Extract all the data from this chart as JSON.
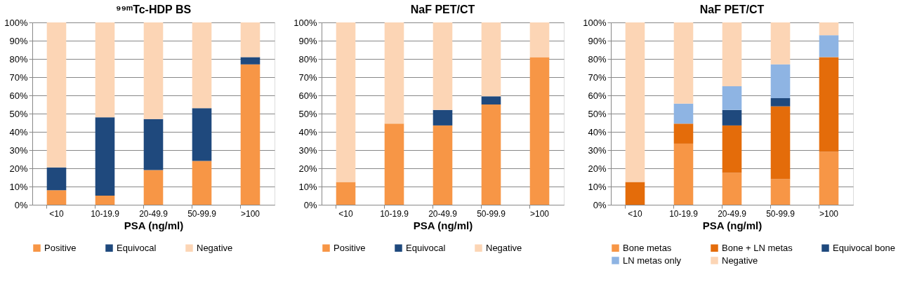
{
  "chart_data": [
    {
      "type": "bar",
      "stacked": true,
      "title": "⁹⁹ᵐTc-HDP BS",
      "xlabel": "PSA (ng/ml)",
      "categories": [
        "<10",
        "10-19.9",
        "20-49.9",
        "50-99.9",
        ">100"
      ],
      "series": [
        {
          "name": "Positive",
          "color": "#f79646",
          "values": [
            8,
            5,
            19,
            24,
            77
          ]
        },
        {
          "name": "Equivocal",
          "color": "#1f497d",
          "values": [
            12.5,
            43,
            28,
            29,
            4
          ]
        },
        {
          "name": "Negative",
          "color": "#fcd5b5",
          "values": [
            79.5,
            52,
            53,
            47,
            19
          ]
        }
      ],
      "ylim": [
        0,
        100
      ],
      "yticks": [
        {
          "value": 0,
          "label": "0%"
        },
        {
          "value": 10,
          "label": "10%"
        },
        {
          "value": 20,
          "label": "20%"
        },
        {
          "value": 30,
          "label": "30%"
        },
        {
          "value": 40,
          "label": "40%"
        },
        {
          "value": 50,
          "label": "50%"
        },
        {
          "value": 60,
          "label": "60%"
        },
        {
          "value": 70,
          "label": "70%"
        },
        {
          "value": 80,
          "label": "80%"
        },
        {
          "value": 90,
          "label": "90%"
        },
        {
          "value": 100,
          "label": "100%"
        }
      ],
      "grid": "y",
      "legend": "bottom"
    },
    {
      "type": "bar",
      "stacked": true,
      "title": "NaF PET/CT",
      "xlabel": "PSA (ng/ml)",
      "categories": [
        "<10",
        "10-19.9",
        "20-49.9",
        "50-99.9",
        ">100"
      ],
      "series": [
        {
          "name": "Positive",
          "color": "#f79646",
          "values": [
            12.5,
            44.5,
            43.5,
            55,
            81
          ]
        },
        {
          "name": "Equivocal",
          "color": "#1f497d",
          "values": [
            0,
            0,
            8.5,
            4.5,
            0
          ]
        },
        {
          "name": "Negative",
          "color": "#fcd5b5",
          "values": [
            87.5,
            55.5,
            48,
            40.5,
            19
          ]
        }
      ],
      "ylim": [
        0,
        100
      ],
      "yticks": [
        {
          "value": 0,
          "label": "0%"
        },
        {
          "value": 10,
          "label": "10%"
        },
        {
          "value": 20,
          "label": "20%"
        },
        {
          "value": 30,
          "label": "30%"
        },
        {
          "value": 40,
          "label": "40%"
        },
        {
          "value": 50,
          "label": "50%"
        },
        {
          "value": 60,
          "label": "60%"
        },
        {
          "value": 70,
          "label": "70%"
        },
        {
          "value": 80,
          "label": "80%"
        },
        {
          "value": 90,
          "label": "90%"
        },
        {
          "value": 100,
          "label": "100%"
        }
      ],
      "grid": "y",
      "legend": "bottom"
    },
    {
      "type": "bar",
      "stacked": true,
      "title": "NaF PET/CT",
      "xlabel": "PSA (ng/ml)",
      "categories": [
        "<10",
        "10-19.9",
        "20-49.9",
        "50-99.9",
        ">100"
      ],
      "series": [
        {
          "name": "Bone metas",
          "color": "#f79646",
          "values": [
            0,
            33.5,
            17.5,
            14,
            29
          ]
        },
        {
          "name": "Bone + LN metas",
          "color": "#e46c0a",
          "values": [
            12.5,
            11,
            26,
            40,
            52
          ]
        },
        {
          "name": "Equivocal bone",
          "color": "#1f497d",
          "values": [
            0,
            0,
            8.5,
            4.5,
            0
          ]
        },
        {
          "name": "LN metas only",
          "color": "#8eb4e3",
          "values": [
            0,
            11,
            13,
            18.5,
            12
          ]
        },
        {
          "name": "Negative",
          "color": "#fcd5b5",
          "values": [
            87.5,
            44.5,
            35,
            23,
            7
          ]
        }
      ],
      "ylim": [
        0,
        100
      ],
      "yticks": [
        {
          "value": 0,
          "label": "0%"
        },
        {
          "value": 10,
          "label": "10%"
        },
        {
          "value": 20,
          "label": "20%"
        },
        {
          "value": 30,
          "label": "30%"
        },
        {
          "value": 40,
          "label": "40%"
        },
        {
          "value": 50,
          "label": "50%"
        },
        {
          "value": 60,
          "label": "60%"
        },
        {
          "value": 70,
          "label": "70%"
        },
        {
          "value": 80,
          "label": "80%"
        },
        {
          "value": 90,
          "label": "90%"
        },
        {
          "value": 100,
          "label": "100%"
        }
      ],
      "grid": "y",
      "legend": "bottom"
    }
  ]
}
